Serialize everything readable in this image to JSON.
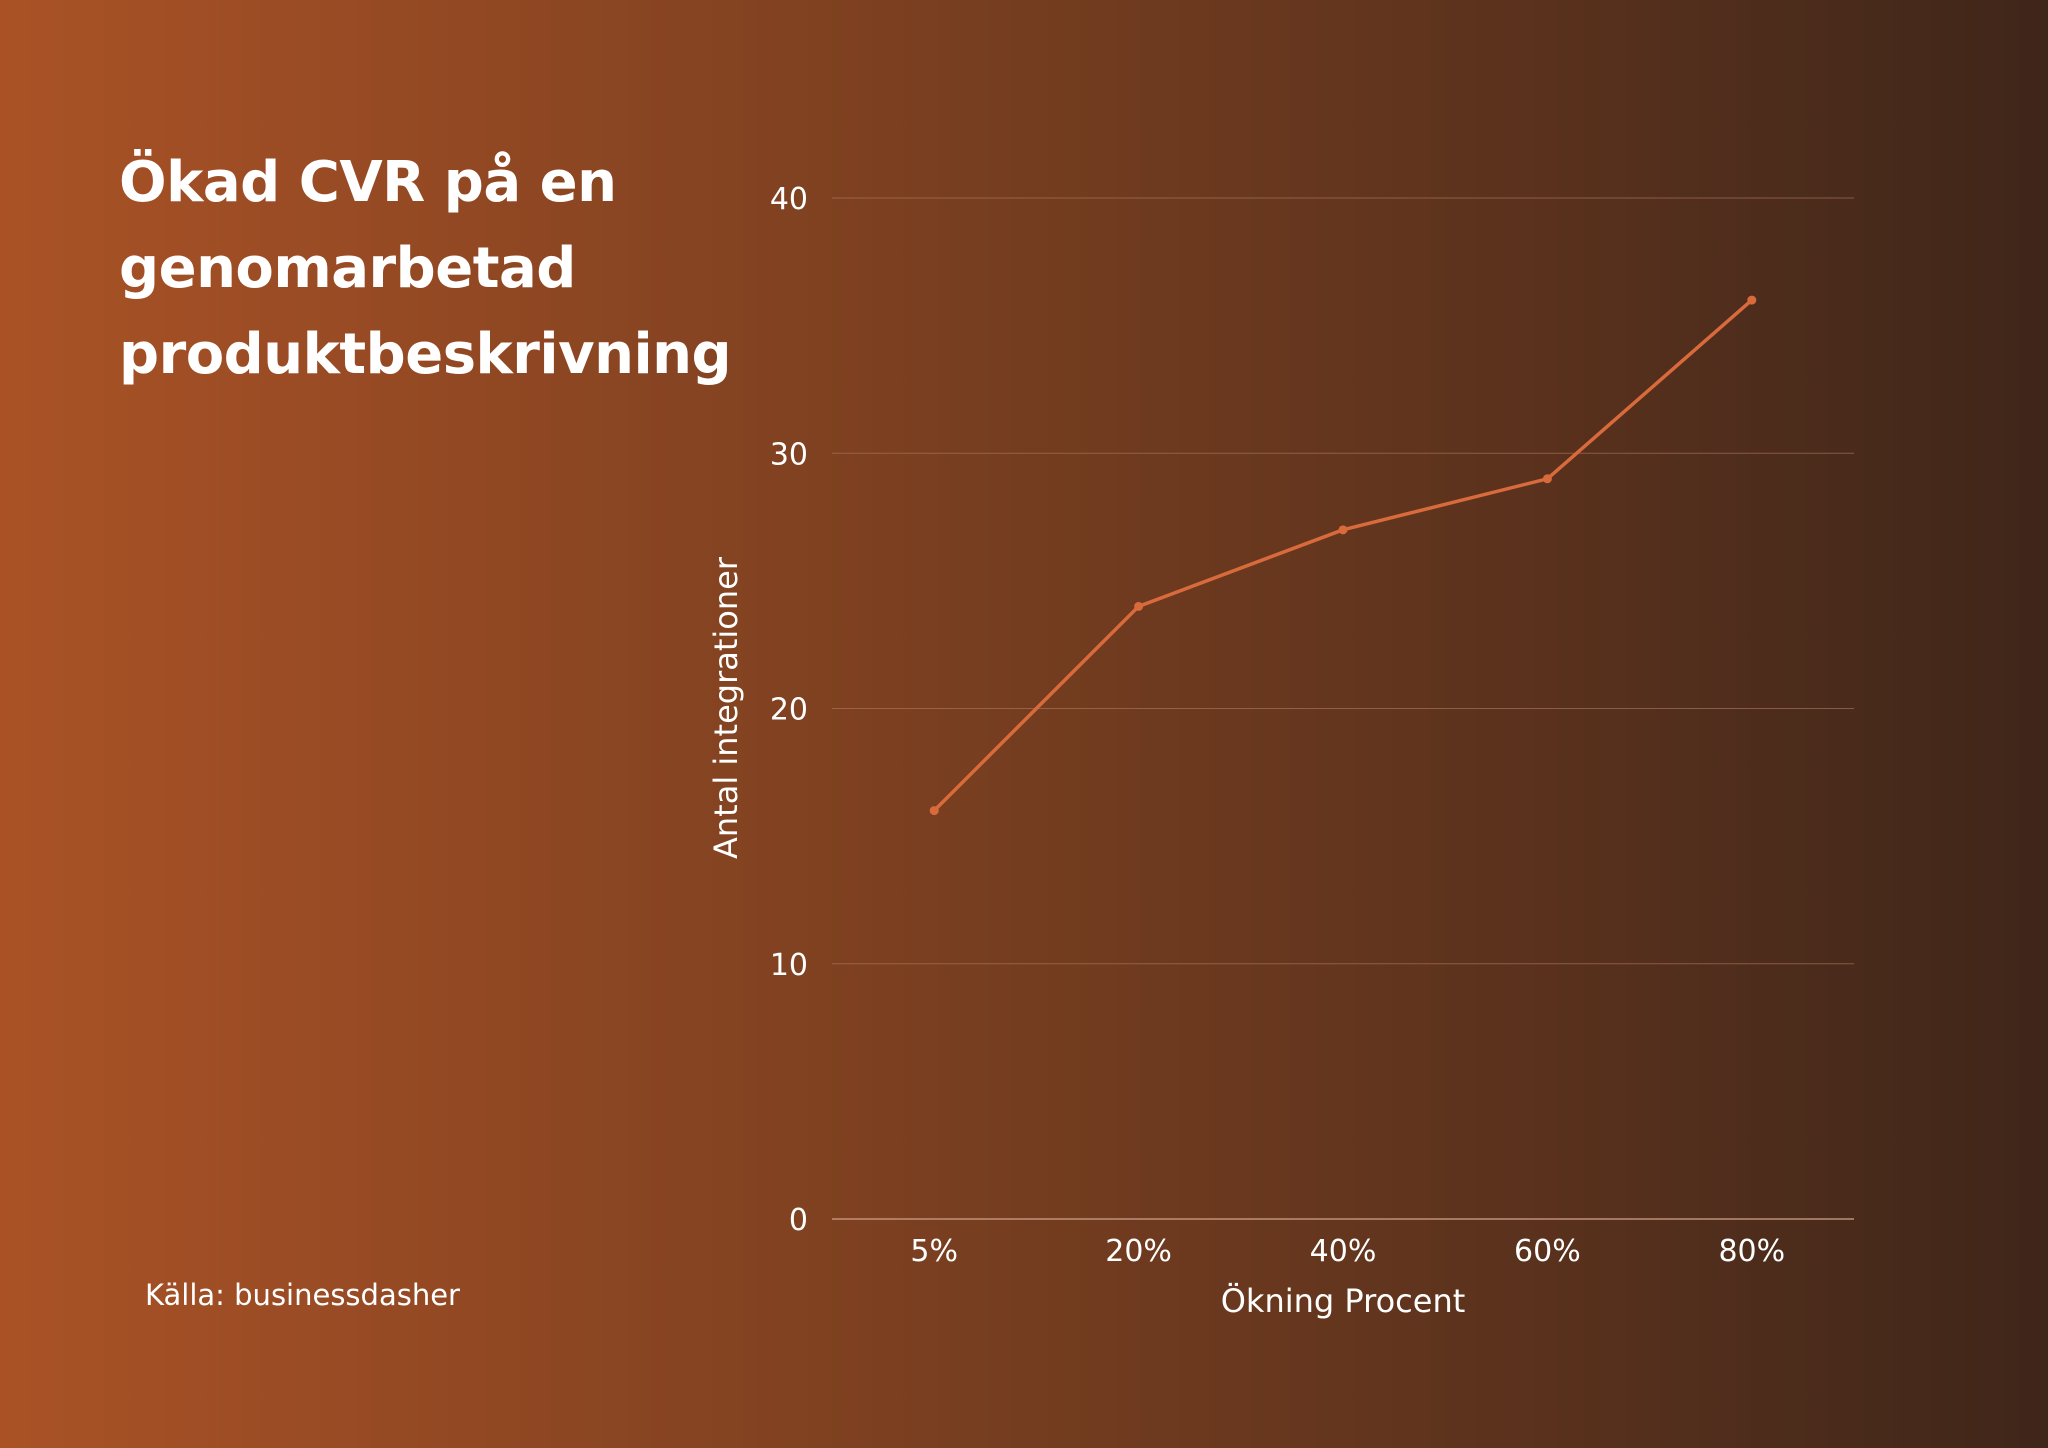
{
  "title": "Ökad CVR på en genomarbetad produktbeskrivning",
  "source": "Källa: businessdasher",
  "colors": {
    "line": "#d96a3c",
    "grid": "#b07a62",
    "axis": "#c99a84"
  },
  "chart_data": {
    "type": "line",
    "title": "Ökad CVR på en genomarbetad produktbeskrivning",
    "categories": [
      "5%",
      "20%",
      "40%",
      "60%",
      "80%"
    ],
    "values": [
      16,
      24,
      27,
      29,
      36
    ],
    "xlabel": "Ökning Procent",
    "ylabel": "Antal integrationer",
    "ylim": [
      0,
      40
    ],
    "yticks": [
      "0",
      "10",
      "20",
      "30",
      "40"
    ],
    "grid": true,
    "legend": "none"
  }
}
